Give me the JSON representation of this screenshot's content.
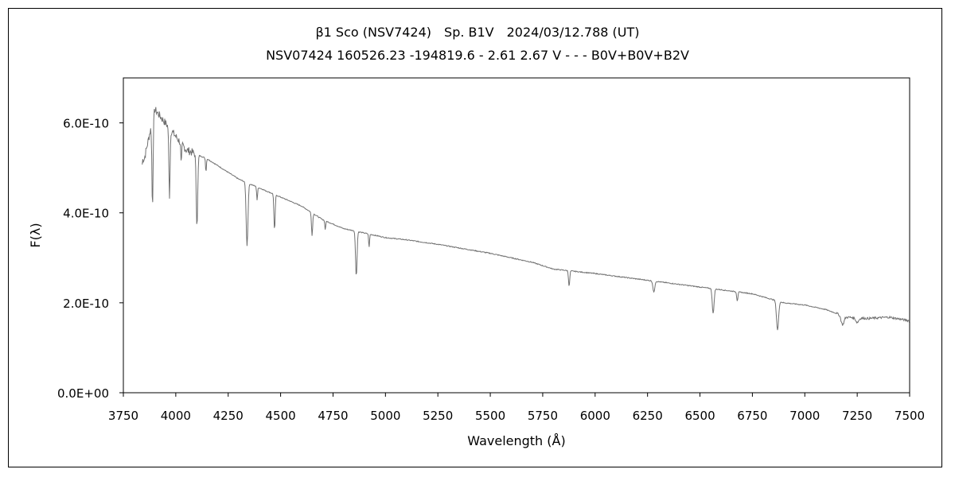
{
  "chart_data": {
    "type": "line",
    "title": "β1 Sco (NSV7424)　Sp. B1V　2024/03/12.788 (UT)",
    "subtitle": "NSV07424 160526.23 -194819.6 - 2.61 2.67 V - - - B0V+B0V+B2V",
    "xlabel": "Wavelength (Å)",
    "ylabel": "F(λ)",
    "xlim": [
      3750,
      7500
    ],
    "ylim": [
      0,
      7e-10
    ],
    "xticks": [
      3750,
      4000,
      4250,
      4500,
      4750,
      5000,
      5250,
      5500,
      5750,
      6000,
      6250,
      6500,
      6750,
      7000,
      7250,
      7500
    ],
    "xtick_labels": [
      "3750",
      "4000",
      "4250",
      "4500",
      "4750",
      "5000",
      "5250",
      "5500",
      "5750",
      "6000",
      "6250",
      "6500",
      "6750",
      "7000",
      "7250",
      "7500"
    ],
    "yticks": [
      0,
      2e-10,
      4e-10,
      6e-10
    ],
    "ytick_labels": [
      "0.0E+00",
      "2.0E-10",
      "4.0E-10",
      "6.0E-10"
    ],
    "grid": false,
    "legend": "none",
    "line_color": "#707070",
    "series": [
      {
        "continuum": [
          [
            3850,
            5.2e-10
          ],
          [
            3900,
            6.3e-10
          ],
          [
            3950,
            6e-10
          ],
          [
            4000,
            5.7e-10
          ],
          [
            4050,
            5.4e-10
          ],
          [
            4100,
            5.3e-10
          ],
          [
            4150,
            5.2e-10
          ],
          [
            4200,
            5.05e-10
          ],
          [
            4300,
            4.75e-10
          ],
          [
            4400,
            4.55e-10
          ],
          [
            4500,
            4.35e-10
          ],
          [
            4600,
            4.15e-10
          ],
          [
            4700,
            3.85e-10
          ],
          [
            4800,
            3.65e-10
          ],
          [
            4900,
            3.55e-10
          ],
          [
            5000,
            3.45e-10
          ],
          [
            5100,
            3.4e-10
          ],
          [
            5250,
            3.3e-10
          ],
          [
            5500,
            3.1e-10
          ],
          [
            5700,
            2.9e-10
          ],
          [
            5800,
            2.75e-10
          ],
          [
            6000,
            2.65e-10
          ],
          [
            6250,
            2.5e-10
          ],
          [
            6500,
            2.35e-10
          ],
          [
            6750,
            2.2e-10
          ],
          [
            6900,
            2e-10
          ],
          [
            7000,
            1.95e-10
          ],
          [
            7100,
            1.85e-10
          ],
          [
            7200,
            1.68e-10
          ],
          [
            7300,
            1.65e-10
          ],
          [
            7400,
            1.68e-10
          ],
          [
            7500,
            1.6e-10
          ]
        ],
        "absorption_lines": [
          [
            3835,
            6e-11,
            4
          ],
          [
            3889,
            1.9e-10,
            4
          ],
          [
            3970,
            1.5e-10,
            4
          ],
          [
            4026,
            5e-11,
            3
          ],
          [
            4101,
            1.6e-10,
            5
          ],
          [
            4144,
            3e-11,
            3
          ],
          [
            4340,
            1.4e-10,
            6
          ],
          [
            4388,
            3e-11,
            3
          ],
          [
            4471,
            8e-11,
            4
          ],
          [
            4650,
            5e-11,
            4
          ],
          [
            4713,
            2e-11,
            3
          ],
          [
            4861,
            1e-10,
            5
          ],
          [
            4922,
            3e-11,
            3
          ],
          [
            5876,
            3.5e-11,
            4
          ],
          [
            6280,
            2.5e-11,
            6
          ],
          [
            6563,
            5.5e-11,
            6
          ],
          [
            6678,
            2e-11,
            4
          ],
          [
            6870,
            6.5e-11,
            7
          ],
          [
            7180,
            2e-11,
            10
          ],
          [
            7250,
            1e-11,
            10
          ]
        ]
      }
    ]
  }
}
